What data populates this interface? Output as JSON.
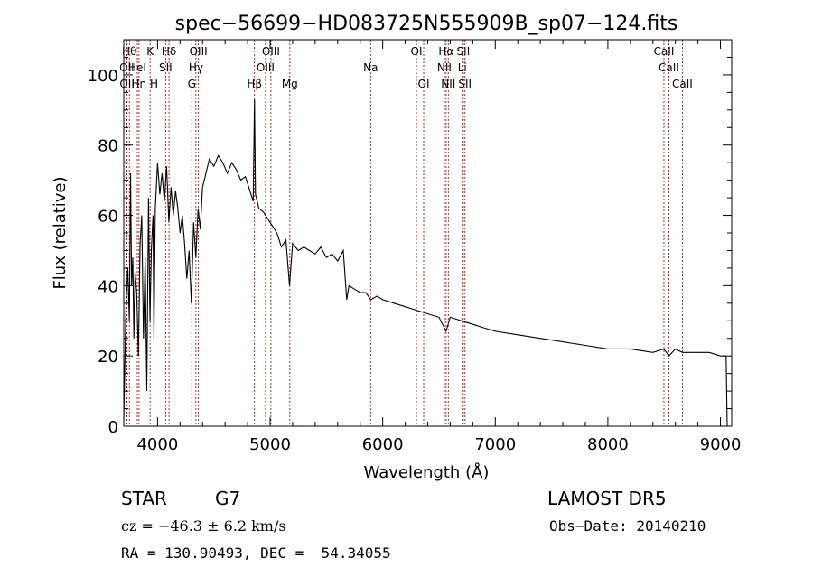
{
  "chart_data": {
    "type": "line",
    "title": "spec−56699−HD083725N555909B_sp07−124.fits",
    "xlabel": "Wavelength (Å)",
    "ylabel": "Flux (relative)",
    "xlim": [
      3700,
      9100
    ],
    "ylim": [
      0,
      110
    ],
    "xticks": [
      4000,
      5000,
      6000,
      7000,
      8000,
      9000
    ],
    "yticks": [
      0,
      20,
      40,
      60,
      80,
      100
    ],
    "grid": false,
    "series": [
      {
        "x": [
          3700,
          3720,
          3735,
          3750,
          3760,
          3770,
          3780,
          3790,
          3800,
          3815,
          3830,
          3845,
          3860,
          3875,
          3890,
          3905,
          3920,
          3933,
          3945,
          3960,
          3968,
          3980,
          4000,
          4020,
          4040,
          4060,
          4080,
          4100,
          4120,
          4140,
          4160,
          4180,
          4200,
          4220,
          4240,
          4260,
          4280,
          4300,
          4320,
          4340,
          4360,
          4380,
          4400,
          4430,
          4460,
          4500,
          4540,
          4580,
          4620,
          4660,
          4700,
          4740,
          4780,
          4820,
          4850,
          4861,
          4870,
          4900,
          4940,
          4980,
          5020,
          5060,
          5100,
          5140,
          5172,
          5200,
          5250,
          5300,
          5350,
          5400,
          5450,
          5500,
          5550,
          5600,
          5650,
          5680,
          5700,
          5750,
          5800,
          5850,
          5893,
          5950,
          6000,
          6100,
          6200,
          6300,
          6400,
          6500,
          6563,
          6600,
          6700,
          6800,
          6900,
          7000,
          7200,
          7400,
          7600,
          7800,
          8000,
          8200,
          8400,
          8498,
          8542,
          8600,
          8662,
          8700,
          8800,
          8900,
          9000,
          9050,
          9060
        ],
        "values": [
          2,
          35,
          45,
          30,
          72,
          40,
          48,
          25,
          44,
          38,
          20,
          52,
          60,
          25,
          48,
          10,
          65,
          30,
          50,
          60,
          25,
          62,
          75,
          66,
          72,
          64,
          74,
          58,
          68,
          60,
          67,
          62,
          55,
          60,
          52,
          42,
          50,
          35,
          58,
          48,
          62,
          56,
          68,
          72,
          76,
          74,
          77,
          75,
          72,
          75,
          73,
          70,
          71,
          67,
          64,
          93,
          66,
          62,
          61,
          59,
          57,
          55,
          51,
          53,
          40,
          52,
          50,
          51,
          50,
          49,
          51,
          48,
          49,
          47,
          50,
          36,
          40,
          39,
          38,
          38,
          36,
          37,
          36,
          35,
          34,
          33,
          32,
          31,
          27,
          31,
          30,
          29,
          28,
          27,
          26,
          25,
          24,
          23,
          22,
          22,
          21,
          22,
          20,
          22,
          21,
          21,
          21,
          21,
          20,
          20,
          0
        ]
      }
    ],
    "lines": [
      {
        "w": 3727,
        "label": "OII",
        "row": 1
      },
      {
        "w": 3729,
        "label": "OII",
        "row": 2
      },
      {
        "w": 3750,
        "label": "Hθ",
        "row": 0
      },
      {
        "w": 3820,
        "label": "HeI",
        "row": 1
      },
      {
        "w": 3835,
        "label": "Hη",
        "row": 2
      },
      {
        "w": 3889,
        "label": "",
        "row": 0
      },
      {
        "w": 3934,
        "label": "K",
        "row": 0
      },
      {
        "w": 3969,
        "label": "H",
        "row": 2
      },
      {
        "w": 4072,
        "label": "SII",
        "row": 1
      },
      {
        "w": 4102,
        "label": "Hδ",
        "row": 0
      },
      {
        "w": 4304,
        "label": "G",
        "row": 2
      },
      {
        "w": 4341,
        "label": "Hγ",
        "row": 1
      },
      {
        "w": 4363,
        "label": "OIII",
        "row": 0
      },
      {
        "w": 4861,
        "label": "Hβ",
        "row": 2
      },
      {
        "w": 4959,
        "label": "OIII",
        "row": 1
      },
      {
        "w": 5007,
        "label": "OIII",
        "row": 0
      },
      {
        "w": 5175,
        "label": "Mg",
        "row": 2
      },
      {
        "w": 5893,
        "label": "Na",
        "row": 1
      },
      {
        "w": 6300,
        "label": "OI",
        "row": 0
      },
      {
        "w": 6364,
        "label": "OI",
        "row": 2
      },
      {
        "w": 6548,
        "label": "NII",
        "row": 1
      },
      {
        "w": 6563,
        "label": "Hα",
        "row": 0
      },
      {
        "w": 6583,
        "label": "NII",
        "row": 2
      },
      {
        "w": 6707,
        "label": "Li",
        "row": 1
      },
      {
        "w": 6716,
        "label": "SII",
        "row": 0
      },
      {
        "w": 6731,
        "label": "SII",
        "row": 2
      },
      {
        "w": 8498,
        "label": "CaII",
        "row": 0
      },
      {
        "w": 8542,
        "label": "CaII",
        "row": 1
      },
      {
        "w": 8662,
        "label": "CaII",
        "row": 2
      }
    ]
  },
  "info": {
    "class": "STAR",
    "subclass": "G7",
    "cz": "cz = −46.3 ± 6.2 km/s",
    "coords": "RA = 130.90493, DEC =  54.34055",
    "survey": "LAMOST DR5",
    "obs_date": "Obs−Date: 20140210"
  }
}
